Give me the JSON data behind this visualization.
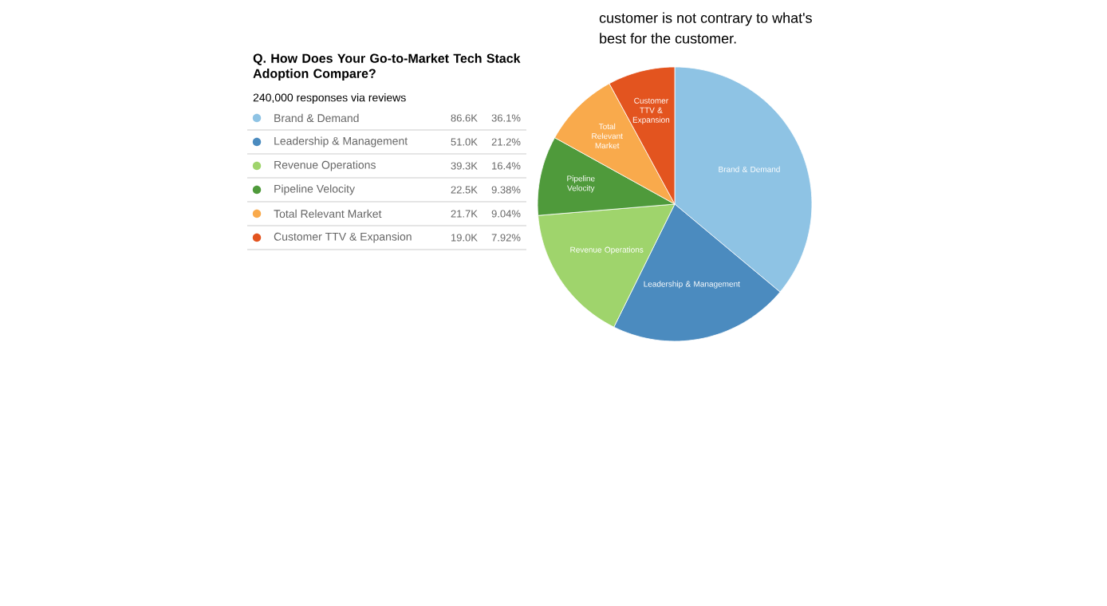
{
  "chart_data": {
    "type": "pie",
    "title": "Q. How Does Your Go-to-Market Tech Stack Adoption Compare?",
    "subtitle": "240,000 responses via reviews",
    "categories": [
      "Brand & Demand",
      "Leadership & Management",
      "Revenue Operations",
      "Pipeline Velocity",
      "Total Relevant Market",
      "Customer TTV & Expansion"
    ],
    "values": [
      86.6,
      51.0,
      39.3,
      22.5,
      21.7,
      19.0
    ],
    "value_labels": [
      "86.6K",
      "51.0K",
      "39.3K",
      "22.5K",
      "21.7K",
      "19.0K"
    ],
    "colors": [
      "#8ec3e4",
      "#4b8bbf",
      "#9fd46c",
      "#4f9a3b",
      "#f9aa4c",
      "#e3541f"
    ],
    "legend": "left",
    "annotations": [
      "36.1%",
      "21.2%",
      "16.4%",
      "9.38%",
      "9.04%",
      "7.92%",
      "customer is not contrary to what's",
      "best for the customer."
    ]
  }
}
